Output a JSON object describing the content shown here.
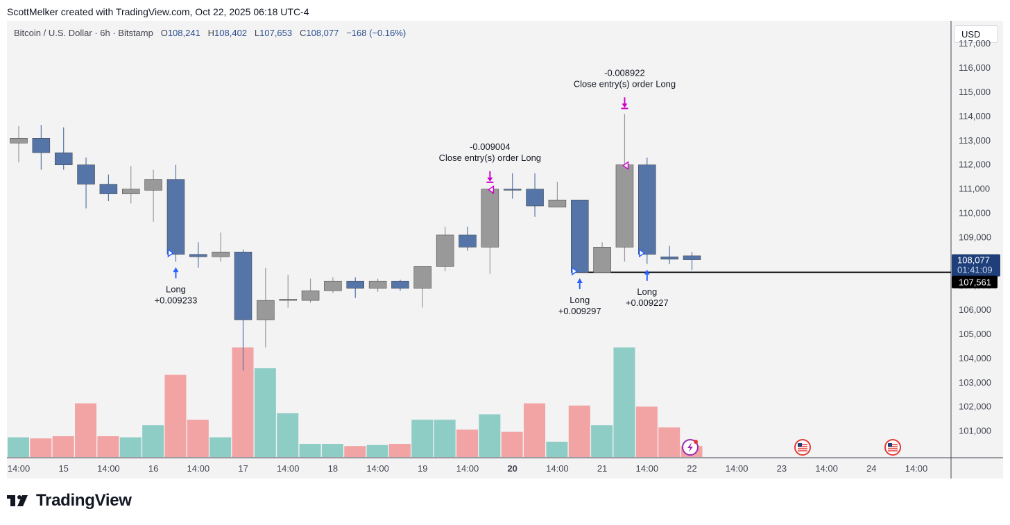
{
  "header": {
    "credit": "ScottMelker created with TradingView.com, Oct 22, 2025 06:18 UTC-4"
  },
  "legend": {
    "symbol": "Bitcoin / U.S. Dollar · 6h · Bitstamp",
    "open_label": "O",
    "open": "108,241",
    "high_label": "H",
    "high": "108,402",
    "low_label": "L",
    "low": "107,653",
    "close_label": "C",
    "close": "108,077",
    "change": "−168 (−0.16%)"
  },
  "currency_button": "USD",
  "brand": {
    "name": "TradingView"
  },
  "price_labels": {
    "last": "108,077",
    "countdown": "01:41:09",
    "line": "107,561"
  },
  "colors": {
    "up": "#999999",
    "down": "#5575a8",
    "vol_up": "#8ecdc6",
    "vol_down": "#f2a3a3",
    "long_marker": "#2962ff",
    "close_marker": "#cc00cc",
    "background": "#f3f3f3"
  },
  "chart_data": {
    "type": "candlestick",
    "title": "Bitcoin / U.S. Dollar · 6h · Bitstamp",
    "interval": "6h",
    "y_ticks": [
      101000,
      102000,
      103000,
      104000,
      105000,
      106000,
      107000,
      108000,
      109000,
      110000,
      111000,
      112000,
      113000,
      114000,
      115000,
      116000,
      117000
    ],
    "ylim": [
      99900,
      117950
    ],
    "x_tick_labels": [
      "14:00",
      "15",
      "14:00",
      "16",
      "14:00",
      "17",
      "14:00",
      "18",
      "14:00",
      "19",
      "14:00",
      "20",
      "14:00",
      "21",
      "14:00",
      "22",
      "14:00",
      "23",
      "14:00",
      "24",
      "14:00"
    ],
    "x_tick_bold": [
      false,
      false,
      false,
      false,
      false,
      false,
      false,
      false,
      false,
      false,
      false,
      true,
      false,
      false,
      false,
      false,
      false,
      false,
      false,
      false,
      false
    ],
    "candles": [
      {
        "o": 112900,
        "h": 113600,
        "l": 112100,
        "c": 113100
      },
      {
        "o": 113100,
        "h": 113650,
        "l": 111800,
        "c": 112500
      },
      {
        "o": 112500,
        "h": 113550,
        "l": 111800,
        "c": 112000
      },
      {
        "o": 112000,
        "h": 112300,
        "l": 110200,
        "c": 111200
      },
      {
        "o": 111200,
        "h": 111600,
        "l": 110500,
        "c": 110800
      },
      {
        "o": 110800,
        "h": 111950,
        "l": 110400,
        "c": 111000
      },
      {
        "o": 110950,
        "h": 111800,
        "l": 109650,
        "c": 111400
      },
      {
        "o": 111400,
        "h": 112000,
        "l": 108000,
        "c": 108300
      },
      {
        "o": 108300,
        "h": 108800,
        "l": 107750,
        "c": 108200
      },
      {
        "o": 108200,
        "h": 109200,
        "l": 108000,
        "c": 108400
      },
      {
        "o": 108400,
        "h": 108500,
        "l": 103500,
        "c": 105600
      },
      {
        "o": 105600,
        "h": 107750,
        "l": 104450,
        "c": 106400
      },
      {
        "o": 106400,
        "h": 107450,
        "l": 106100,
        "c": 106450
      },
      {
        "o": 106400,
        "h": 107300,
        "l": 106300,
        "c": 106800
      },
      {
        "o": 106800,
        "h": 107350,
        "l": 106700,
        "c": 107200
      },
      {
        "o": 107200,
        "h": 107350,
        "l": 106500,
        "c": 106900
      },
      {
        "o": 106900,
        "h": 107300,
        "l": 106750,
        "c": 107200
      },
      {
        "o": 107200,
        "h": 107250,
        "l": 106800,
        "c": 106900
      },
      {
        "o": 106900,
        "h": 107750,
        "l": 106100,
        "c": 107800
      },
      {
        "o": 107800,
        "h": 109450,
        "l": 107600,
        "c": 109100
      },
      {
        "o": 109100,
        "h": 109450,
        "l": 108450,
        "c": 108600
      },
      {
        "o": 108600,
        "h": 111050,
        "l": 107500,
        "c": 111000
      },
      {
        "o": 111000,
        "h": 111650,
        "l": 110600,
        "c": 110950
      },
      {
        "o": 111000,
        "h": 111650,
        "l": 109850,
        "c": 110300
      },
      {
        "o": 110250,
        "h": 111300,
        "l": 110250,
        "c": 110550
      },
      {
        "o": 110550,
        "h": 110550,
        "l": 107550,
        "c": 107550
      },
      {
        "o": 107550,
        "h": 108800,
        "l": 107550,
        "c": 108600
      },
      {
        "o": 108600,
        "h": 114100,
        "l": 108000,
        "c": 112000
      },
      {
        "o": 112000,
        "h": 112300,
        "l": 107900,
        "c": 108300
      },
      {
        "o": 108200,
        "h": 108650,
        "l": 107900,
        "c": 108100
      },
      {
        "o": 108241,
        "h": 108402,
        "l": 107653,
        "c": 108077
      }
    ],
    "volume_max_height_ratio": 1.0,
    "volumes": [
      0.18,
      0.17,
      0.19,
      0.49,
      0.19,
      0.18,
      0.29,
      0.75,
      0.34,
      0.18,
      1.0,
      0.81,
      0.4,
      0.12,
      0.12,
      0.1,
      0.11,
      0.12,
      0.34,
      0.34,
      0.25,
      0.39,
      0.23,
      0.49,
      0.14,
      0.47,
      0.29,
      1.0,
      0.46,
      0.27,
      0.1
    ],
    "horizontal_line": 107561,
    "signals": [
      {
        "bar": 7,
        "kind": "long",
        "label": "Long",
        "value": "+0.009233"
      },
      {
        "bar": 21,
        "kind": "close",
        "label": "Close entry(s) order Long",
        "value": "-0.009004"
      },
      {
        "bar": 25,
        "kind": "long",
        "label": "Long",
        "value": "+0.009297"
      },
      {
        "bar": 27,
        "kind": "close",
        "label": "Close entry(s) order Long",
        "value": "-0.008922"
      },
      {
        "bar": 28,
        "kind": "long",
        "label": "Long",
        "value": "+0.009227"
      }
    ],
    "event_icons": [
      "lightning",
      "us-flag",
      "us-flag"
    ]
  }
}
